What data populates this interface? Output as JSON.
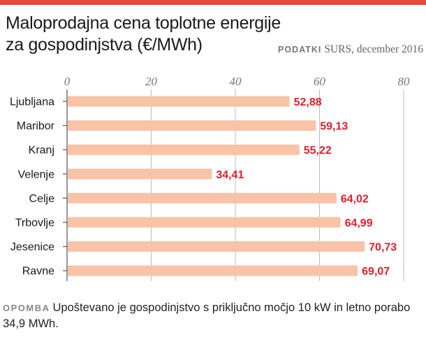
{
  "title_line1": "Maloprodajna cena toplotne energije",
  "title_line2": "za gospodinjstva (€/MWh)",
  "source_label": "PODATKI",
  "source_text": "SURS, december 2016",
  "note_label": "OPOMBA",
  "note_text": "Upoštevano je gospodinjstvo s priključno močjo 10 kW in letno porabo 34,9 MWh.",
  "colors": {
    "accent": "#e8483a",
    "bar": "#f8c3a6",
    "value_label": "#e0202a",
    "grid": "#bbbbbb"
  },
  "chart_data": {
    "type": "bar",
    "orientation": "horizontal",
    "categories": [
      "Ljubljana",
      "Maribor",
      "Kranj",
      "Velenje",
      "Celje",
      "Trbovlje",
      "Jesenice",
      "Ravne"
    ],
    "values": [
      52.88,
      59.13,
      55.22,
      34.41,
      64.02,
      64.99,
      70.73,
      69.07
    ],
    "value_labels": [
      "52,88",
      "59,13",
      "55,22",
      "34,41",
      "64,02",
      "64,99",
      "70,73",
      "69,07"
    ],
    "xticks": [
      "0",
      "20",
      "40",
      "60",
      "80"
    ],
    "xlim": [
      0,
      80
    ],
    "grid": true
  }
}
